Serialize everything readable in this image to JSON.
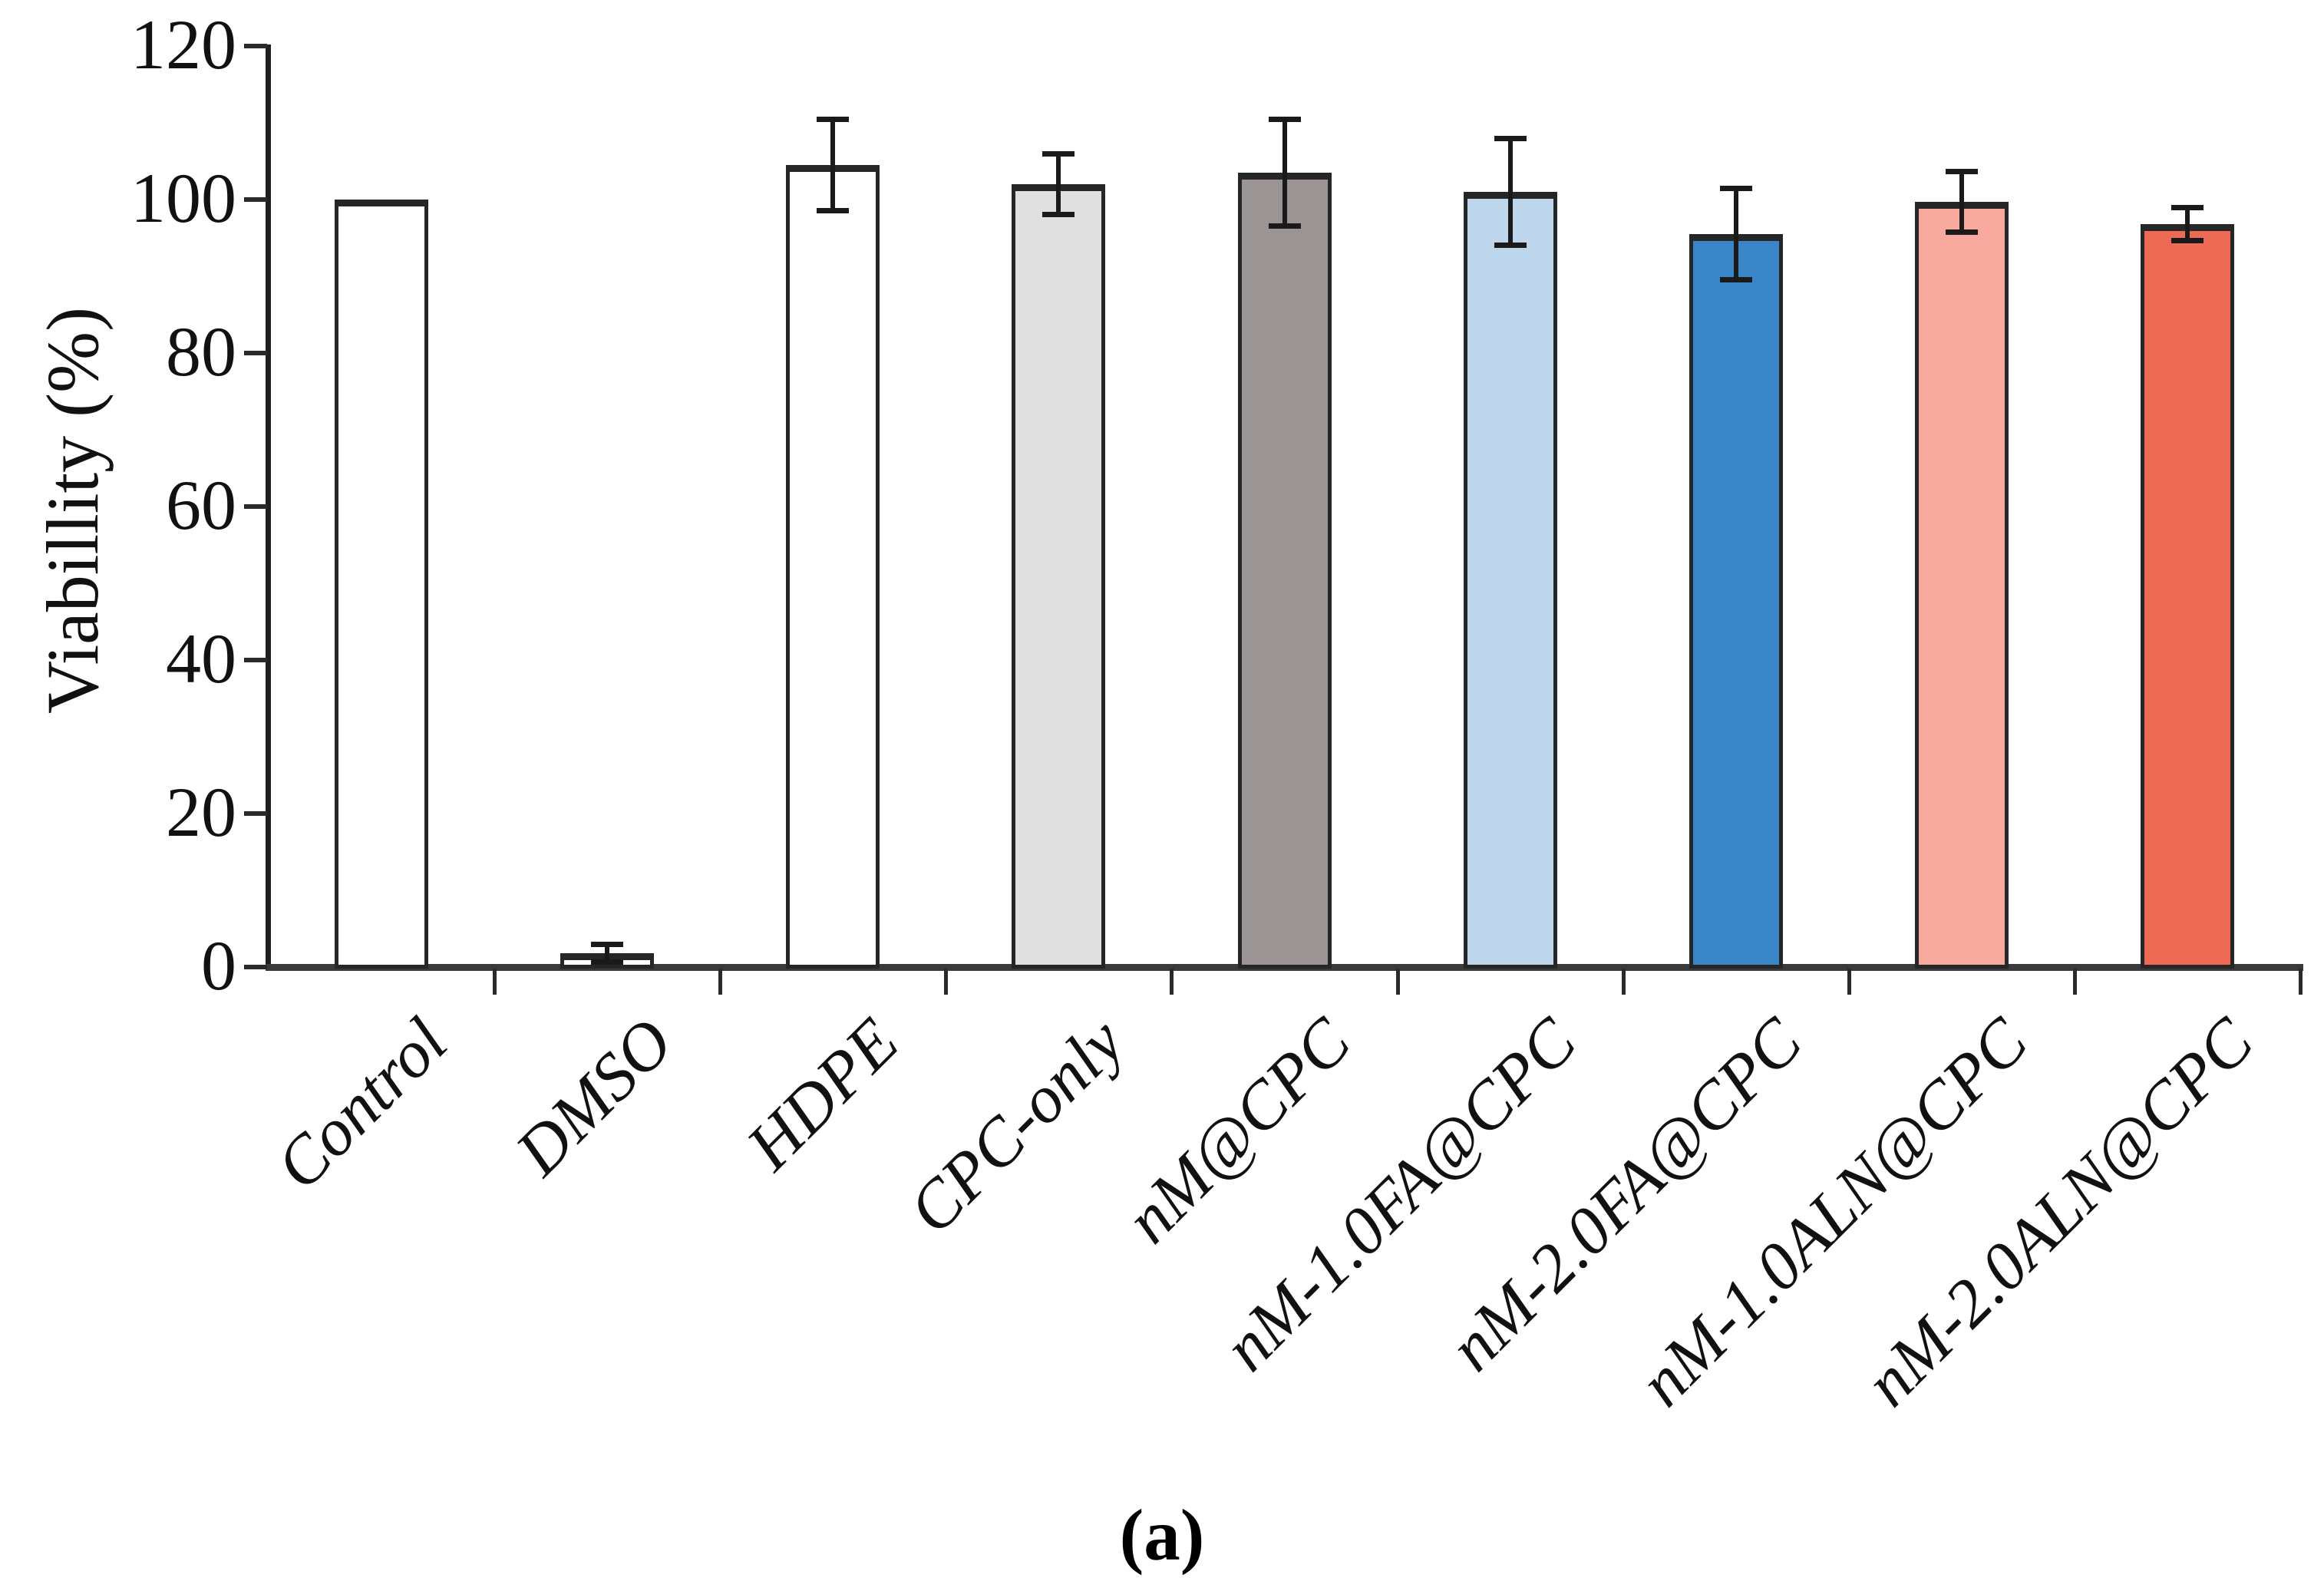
{
  "figure": {
    "caption": "(a)"
  },
  "chart_data": {
    "type": "bar",
    "title": "",
    "xlabel": "",
    "ylabel": "Viabillity (%)",
    "ylim": [
      0,
      120
    ],
    "yticks": [
      0,
      20,
      40,
      60,
      80,
      100,
      120
    ],
    "grid": false,
    "legend": false,
    "categories": [
      "Control",
      "DMSO",
      "HDPE",
      "CPC-only",
      "nM@CPC",
      "nM-1.0FA@CPC",
      "nM-2.0FA@CPC",
      "nM-1.0ALN@CPC",
      "nM-2.0ALN@CPC"
    ],
    "series": [
      {
        "name": "Viability",
        "values": [
          100,
          1.8,
          104.5,
          102,
          103.5,
          101,
          95.5,
          99.7,
          96.8
        ],
        "error_bars": [
          0,
          1.2,
          6,
          4,
          7,
          7,
          6,
          4,
          2.2
        ],
        "bar_colors": [
          "#ffffff",
          "#ffffff",
          "#ffffff",
          "#e1e0e0",
          "#9a9495",
          "#bdd6ec",
          "#3a84c8",
          "#f8a99e",
          "#ef6a55"
        ]
      }
    ],
    "bar_outline_color": "#262626",
    "error_bar_color": "#1a1a1a"
  }
}
